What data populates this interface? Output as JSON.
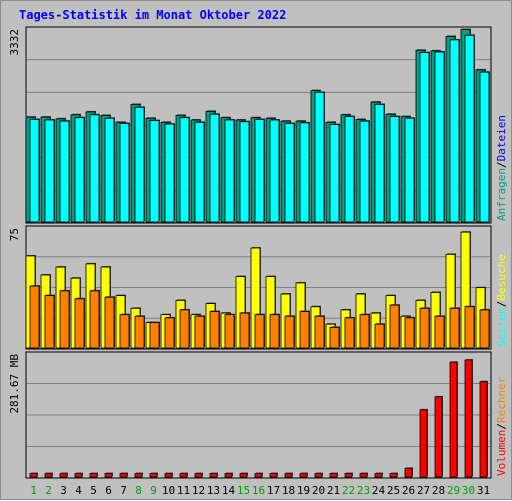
{
  "title": "Tages-Statistik im Monat Oktober 2022",
  "colors": {
    "background": "#c0c0c0",
    "anfragen": "#00a080",
    "dateien": "#00ffff",
    "seiten": "#ffff00",
    "besuche": "#ff8000",
    "rechner": "#ff8000",
    "volumen": "#ff0000",
    "weekend_label": "#00a000",
    "weekday_label": "#000000",
    "title": "#0000ff"
  },
  "chart_data": [
    {
      "type": "bar",
      "panel": "top",
      "ymax_label": "3332",
      "ylim": [
        0,
        3332
      ],
      "legend": [
        {
          "text": "Anfragen",
          "color": "#00a080"
        },
        {
          "text": "/",
          "color": "#000000"
        },
        {
          "text": "Dateien",
          "color": "#0000ff"
        }
      ],
      "categories": [
        "1",
        "2",
        "3",
        "4",
        "5",
        "6",
        "7",
        "8",
        "9",
        "10",
        "11",
        "12",
        "13",
        "14",
        "15",
        "16",
        "17",
        "18",
        "19",
        "20",
        "21",
        "22",
        "23",
        "24",
        "25",
        "26",
        "27",
        "28",
        "29",
        "30",
        "31"
      ],
      "series": [
        {
          "name": "Anfragen",
          "values": [
            1820,
            1820,
            1790,
            1860,
            1910,
            1850,
            1730,
            2040,
            1800,
            1730,
            1850,
            1770,
            1920,
            1810,
            1770,
            1810,
            1800,
            1750,
            1750,
            2280,
            1730,
            1860,
            1780,
            2080,
            1870,
            1830,
            2980,
            2970,
            3220,
            3340,
            2640
          ]
        },
        {
          "name": "Dateien",
          "values": [
            1780,
            1770,
            1750,
            1810,
            1860,
            1800,
            1710,
            1990,
            1760,
            1700,
            1810,
            1730,
            1870,
            1770,
            1740,
            1780,
            1770,
            1710,
            1720,
            2250,
            1690,
            1830,
            1750,
            2040,
            1830,
            1800,
            2940,
            2950,
            3160,
            3240,
            2600
          ]
        }
      ]
    },
    {
      "type": "bar",
      "panel": "middle",
      "ymax_label": "75",
      "ylim": [
        0,
        75
      ],
      "legend": [
        {
          "text": "Seiten",
          "color": "#00ffff"
        },
        {
          "text": "/",
          "color": "#000000"
        },
        {
          "text": "Besuche",
          "color": "#ffff00"
        }
      ],
      "categories": [
        "1",
        "2",
        "3",
        "4",
        "5",
        "6",
        "7",
        "8",
        "9",
        "10",
        "11",
        "12",
        "13",
        "14",
        "15",
        "16",
        "17",
        "18",
        "19",
        "20",
        "21",
        "22",
        "23",
        "24",
        "25",
        "26",
        "27",
        "28",
        "29",
        "30",
        "31"
      ],
      "series": [
        {
          "name": "Seiten",
          "values": [
            58,
            46,
            51,
            44,
            53,
            51,
            33,
            25,
            16,
            21,
            30,
            21,
            28,
            22,
            45,
            63,
            45,
            34,
            41,
            26,
            15,
            24,
            34,
            22,
            33,
            20,
            30,
            35,
            59,
            73,
            38
          ]
        },
        {
          "name": "Besuche",
          "values": [
            39,
            33,
            36,
            31,
            36,
            32,
            21,
            20,
            16,
            19,
            24,
            20,
            23,
            21,
            22,
            21,
            21,
            20,
            23,
            20,
            13,
            19,
            21,
            15,
            27,
            19,
            25,
            20,
            25,
            26,
            24
          ]
        }
      ]
    },
    {
      "type": "bar",
      "panel": "bottom",
      "ymax_label": "281.67 MB",
      "ylim": [
        0,
        281.67
      ],
      "legend": [
        {
          "text": "Volumen",
          "color": "#ff0000"
        },
        {
          "text": "/",
          "color": "#000000"
        },
        {
          "text": "Rechner",
          "color": "#ff8000"
        }
      ],
      "categories": [
        "1",
        "2",
        "3",
        "4",
        "5",
        "6",
        "7",
        "8",
        "9",
        "10",
        "11",
        "12",
        "13",
        "14",
        "15",
        "16",
        "17",
        "18",
        "19",
        "20",
        "21",
        "22",
        "23",
        "24",
        "25",
        "26",
        "27",
        "28",
        "29",
        "30",
        "31"
      ],
      "weekend_days": [
        "1",
        "2",
        "8",
        "9",
        "15",
        "16",
        "22",
        "23",
        "29",
        "30"
      ],
      "series": [
        {
          "name": "Volumen",
          "values": [
            8,
            8,
            8,
            8,
            8,
            8,
            8,
            8,
            8,
            8,
            8,
            8,
            8,
            8,
            8,
            8,
            8,
            8,
            8,
            8,
            8,
            8,
            8,
            8,
            8,
            20,
            155,
            185,
            265,
            270,
            220
          ]
        }
      ]
    }
  ]
}
